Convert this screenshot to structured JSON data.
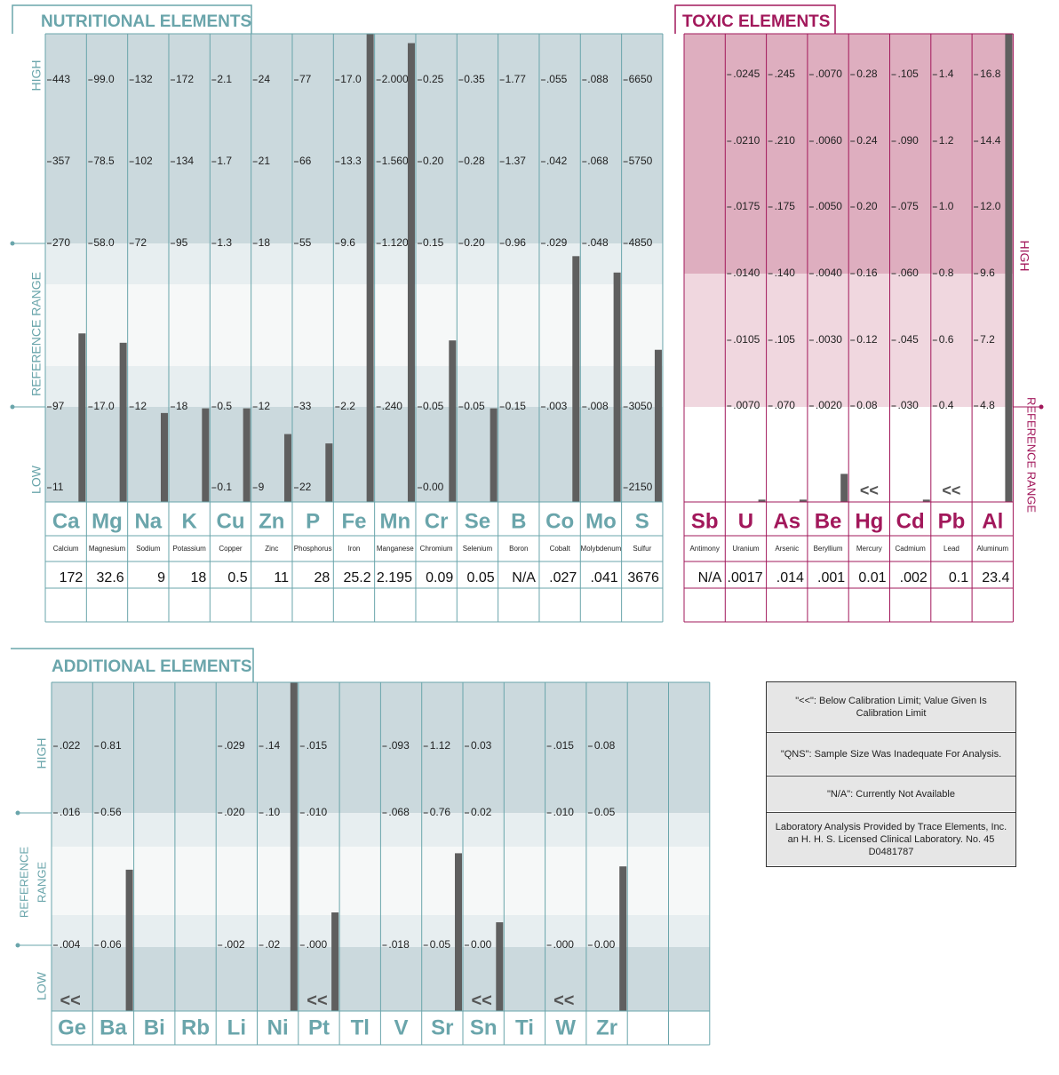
{
  "colors": {
    "teal": "#6aa5ab",
    "teal_text": "#6aa5ab",
    "teal_high_band": "#cbd9dd",
    "teal_mid_band": "#e7eef0",
    "teal_ref_band": "#f6f8f8",
    "magenta": "#a2185b",
    "mag_high_band": "#deaebf",
    "mag_mid_band": "#f0d7df",
    "bar": "#5f5f5f"
  },
  "nutritional": {
    "title": "NUTRITIONAL  ELEMENTS",
    "axis_labels": {
      "high": "HIGH",
      "reference": "REFERENCE  RANGE",
      "low": "LOW"
    }
  },
  "toxic": {
    "title": "TOXIC  ELEMENTS",
    "axis_labels": {
      "high": "HIGH",
      "reference": "REFERENCE RANGE"
    }
  },
  "additional": {
    "title": "ADDITIONAL  ELEMENTS",
    "axis_labels": {
      "high": "HIGH",
      "reference": "REFERENCE RANGE",
      "low": "LOW"
    }
  },
  "legend": [
    "\"<<\": Below Calibration Limit; Value Given Is Calibration Limit",
    "\"QNS\": Sample Size Was Inadequate For Analysis.",
    "\"N/A\": Currently Not Available",
    "Laboratory Analysis Provided by Trace Elements, Inc. an H. H. S. Licensed Clinical Laboratory.  No. 45 D0481787"
  ],
  "chart_data": [
    {
      "type": "bar",
      "title": "NUTRITIONAL  ELEMENTS",
      "series": [
        {
          "values": [
            172,
            32.6,
            9,
            18,
            0.5,
            11,
            28,
            25.2,
            2.195,
            0.09,
            0.05,
            null,
            0.027,
            0.041,
            3676
          ]
        }
      ],
      "elements": [
        {
          "symbol": "Ca",
          "name": "Calcium",
          "result": "172",
          "ticks": [
            "443",
            "357",
            "270",
            "97",
            "11"
          ],
          "level": 0.36
        },
        {
          "symbol": "Mg",
          "name": "Magnesium",
          "result": "32.6",
          "ticks": [
            "99.0",
            "78.5",
            "58.0",
            "17.0",
            ""
          ],
          "level": 0.34
        },
        {
          "symbol": "Na",
          "name": "Sodium",
          "result": "9",
          "ticks": [
            "132",
            "102",
            "72",
            "12",
            ""
          ],
          "level": 0.19
        },
        {
          "symbol": "K",
          "name": "Potassium",
          "result": "18",
          "ticks": [
            "172",
            "134",
            "95",
            "18",
            ""
          ],
          "level": 0.2
        },
        {
          "symbol": "Cu",
          "name": "Copper",
          "result": "0.5",
          "ticks": [
            "2.1",
            "1.7",
            "1.3",
            "0.5",
            "0.1"
          ],
          "level": 0.2
        },
        {
          "symbol": "Zn",
          "name": "Zinc",
          "result": "11",
          "ticks": [
            "24",
            "21",
            "18",
            "12",
            "9"
          ],
          "level": 0.145
        },
        {
          "symbol": "P",
          "name": "Phosphorus",
          "result": "28",
          "ticks": [
            "77",
            "66",
            "55",
            "33",
            "22"
          ],
          "level": 0.125
        },
        {
          "symbol": "Fe",
          "name": "Iron",
          "result": "25.2",
          "ticks": [
            "17.0",
            "13.3",
            "9.6",
            "2.2",
            ""
          ],
          "level": 1.0
        },
        {
          "symbol": "Mn",
          "name": "Manganese",
          "result": "2.195",
          "ticks": [
            "2.000",
            "1.560",
            "1.120",
            ".240",
            ""
          ],
          "level": 0.98
        },
        {
          "symbol": "Cr",
          "name": "Chromium",
          "result": "0.09",
          "ticks": [
            "0.25",
            "0.20",
            "0.15",
            "0.05",
            "0.00"
          ],
          "level": 0.345
        },
        {
          "symbol": "Se",
          "name": "Selenium",
          "result": "0.05",
          "ticks": [
            "0.35",
            "0.28",
            "0.20",
            "0.05",
            ""
          ],
          "level": 0.2
        },
        {
          "symbol": "B",
          "name": "Boron",
          "result": "N/A",
          "ticks": [
            "1.77",
            "1.37",
            "0.96",
            "0.15",
            ""
          ],
          "level": 0
        },
        {
          "symbol": "Co",
          "name": "Cobalt",
          "result": ".027",
          "ticks": [
            ".055",
            ".042",
            ".029",
            ".003",
            ""
          ],
          "level": 0.525
        },
        {
          "symbol": "Mo",
          "name": "Molybdenum",
          "result": ".041",
          "ticks": [
            ".088",
            ".068",
            ".048",
            ".008",
            ""
          ],
          "level": 0.49
        },
        {
          "symbol": "S",
          "name": "Sulfur",
          "result": "3676",
          "ticks": [
            "6650",
            "5750",
            "4850",
            "3050",
            "2150"
          ],
          "level": 0.325
        }
      ]
    },
    {
      "type": "bar",
      "title": "TOXIC  ELEMENTS",
      "series": [
        {
          "values": [
            null,
            0.0017,
            0.014,
            0.001,
            0.01,
            0.002,
            0.1,
            23.4
          ]
        }
      ],
      "elements": [
        {
          "symbol": "Sb",
          "name": "Antimony",
          "result": "N/A",
          "ticks": [
            "",
            "",
            "",
            "",
            "",
            ""
          ],
          "level": 0,
          "below": false
        },
        {
          "symbol": "U",
          "name": "Uranium",
          "result": ".0017",
          "ticks": [
            ".0245",
            ".0210",
            ".0175",
            ".0140",
            ".0105",
            ".0070"
          ],
          "level": 0.005,
          "below": false
        },
        {
          "symbol": "As",
          "name": "Arsenic",
          "result": ".014",
          "ticks": [
            ".245",
            ".210",
            ".175",
            ".140",
            ".105",
            ".070"
          ],
          "level": 0.005,
          "below": false
        },
        {
          "symbol": "Be",
          "name": "Beryllium",
          "result": ".001",
          "ticks": [
            ".0070",
            ".0060",
            ".0050",
            ".0040",
            ".0030",
            ".0020"
          ],
          "level": 0.06,
          "below": false
        },
        {
          "symbol": "Hg",
          "name": "Mercury",
          "result": "0.01",
          "ticks": [
            "0.28",
            "0.24",
            "0.20",
            "0.16",
            "0.12",
            "0.08"
          ],
          "level": 0,
          "below": true
        },
        {
          "symbol": "Cd",
          "name": "Cadmium",
          "result": ".002",
          "ticks": [
            ".105",
            ".090",
            ".075",
            ".060",
            ".045",
            ".030"
          ],
          "level": 0.005,
          "below": false
        },
        {
          "symbol": "Pb",
          "name": "Lead",
          "result": "0.1",
          "ticks": [
            "1.4",
            "1.2",
            "1.0",
            "0.8",
            "0.6",
            "0.4"
          ],
          "level": 0,
          "below": true
        },
        {
          "symbol": "Al",
          "name": "Aluminum",
          "result": "23.4",
          "ticks": [
            "16.8",
            "14.4",
            "12.0",
            "9.6",
            "7.2",
            "4.8"
          ],
          "level": 1.0,
          "below": false
        }
      ]
    },
    {
      "type": "bar",
      "title": "ADDITIONAL  ELEMENTS",
      "elements": [
        {
          "symbol": "Ge",
          "ticks": [
            ".022",
            ".016",
            ".004"
          ],
          "level": 0,
          "below": true
        },
        {
          "symbol": "Ba",
          "ticks": [
            "0.81",
            "0.56",
            "0.06"
          ],
          "level": 0.43,
          "below": false
        },
        {
          "symbol": "Bi",
          "ticks": [
            "",
            "",
            ""
          ],
          "level": 0,
          "below": false
        },
        {
          "symbol": "Rb",
          "ticks": [
            "",
            "",
            ""
          ],
          "level": 0,
          "below": false
        },
        {
          "symbol": "Li",
          "ticks": [
            ".029",
            ".020",
            ".002"
          ],
          "level": 0,
          "below": false
        },
        {
          "symbol": "Ni",
          "ticks": [
            ".14",
            ".10",
            ".02"
          ],
          "level": 1.0,
          "below": false
        },
        {
          "symbol": "Pt",
          "ticks": [
            ".015",
            ".010",
            ".000"
          ],
          "level": 0.3,
          "below": true
        },
        {
          "symbol": "Tl",
          "ticks": [
            "",
            "",
            ""
          ],
          "level": 0,
          "below": false
        },
        {
          "symbol": "V",
          "ticks": [
            ".093",
            ".068",
            ".018"
          ],
          "level": 0,
          "below": false
        },
        {
          "symbol": "Sr",
          "ticks": [
            "1.12",
            "0.76",
            "0.05"
          ],
          "level": 0.48,
          "below": false
        },
        {
          "symbol": "Sn",
          "ticks": [
            "0.03",
            "0.02",
            "0.00"
          ],
          "level": 0.27,
          "below": true
        },
        {
          "symbol": "Ti",
          "ticks": [
            "",
            "",
            ""
          ],
          "level": 0,
          "below": false
        },
        {
          "symbol": "W",
          "ticks": [
            ".015",
            ".010",
            ".000"
          ],
          "level": 0,
          "below": true
        },
        {
          "symbol": "Zr",
          "ticks": [
            "0.08",
            "0.05",
            "0.00"
          ],
          "level": 0.44,
          "below": false
        },
        {
          "symbol": "",
          "ticks": [
            "",
            "",
            ""
          ],
          "level": 0,
          "below": false
        },
        {
          "symbol": "",
          "ticks": [
            "",
            "",
            ""
          ],
          "level": 0,
          "below": false
        }
      ]
    }
  ],
  "below_marker": "<<"
}
